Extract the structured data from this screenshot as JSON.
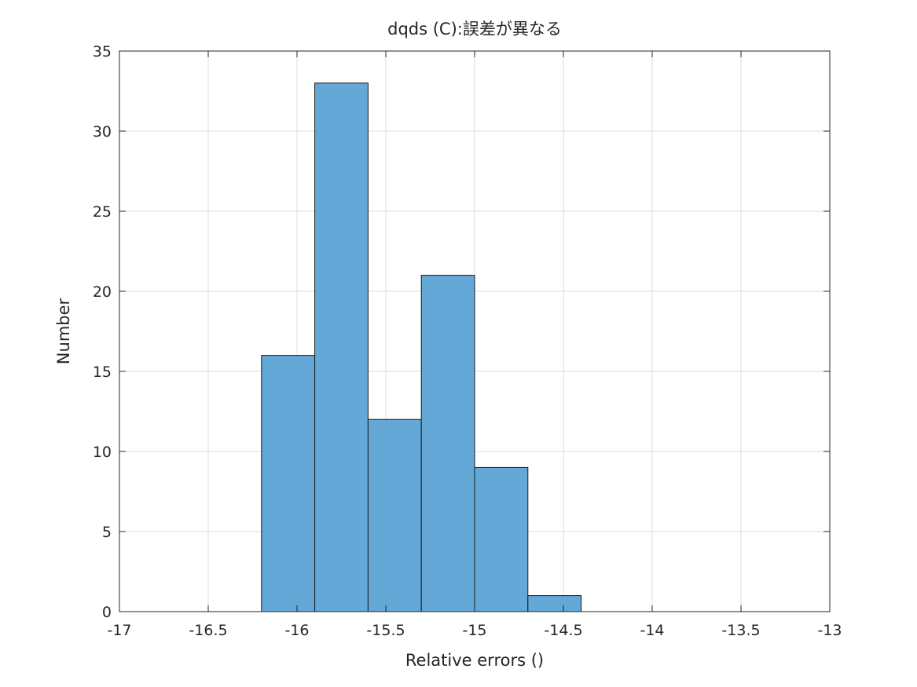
{
  "chart_data": {
    "type": "bar",
    "title": "dqds (C):誤差が異なる",
    "xlabel": "Relative errors ()",
    "ylabel": "Number",
    "xlim": [
      -17,
      -13
    ],
    "ylim": [
      0,
      35
    ],
    "xticks": [
      -17,
      -16.5,
      -16,
      -15.5,
      -15,
      -14.5,
      -14,
      -13.5,
      -13
    ],
    "xtick_labels": [
      "-17",
      "-16.5",
      "-16",
      "-15.5",
      "-15",
      "-14.5",
      "-14",
      "-13.5",
      "-13"
    ],
    "yticks": [
      0,
      5,
      10,
      15,
      20,
      25,
      30,
      35
    ],
    "ytick_labels": [
      "0",
      "5",
      "10",
      "15",
      "20",
      "25",
      "30",
      "35"
    ],
    "grid": true,
    "bar_color": "#63a8d6",
    "bins": [
      {
        "from": -16.2,
        "to": -15.9,
        "value": 16
      },
      {
        "from": -15.9,
        "to": -15.6,
        "value": 33
      },
      {
        "from": -15.6,
        "to": -15.3,
        "value": 12
      },
      {
        "from": -15.3,
        "to": -15.0,
        "value": 21
      },
      {
        "from": -15.0,
        "to": -14.7,
        "value": 9
      },
      {
        "from": -14.7,
        "to": -14.4,
        "value": 1
      }
    ]
  }
}
